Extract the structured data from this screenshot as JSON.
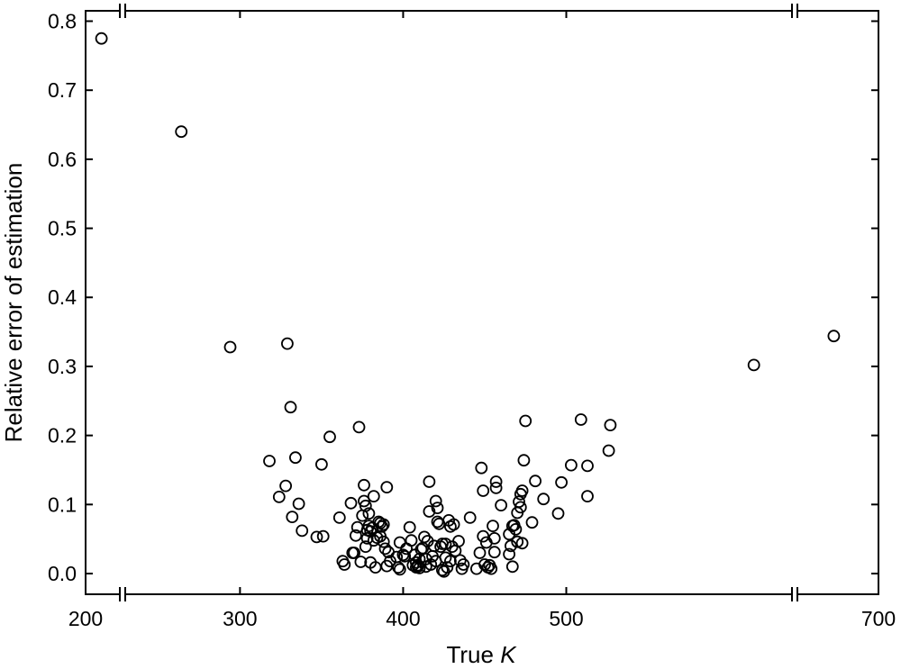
{
  "chart_data": {
    "type": "scatter",
    "title": "",
    "xlabel_prefix": "True ",
    "xlabel_var": "K",
    "ylabel": "Relative error of estimation",
    "ylim": [
      -0.03,
      0.815
    ],
    "y_ticks": [
      "0.0",
      "0.1",
      "0.2",
      "0.3",
      "0.4",
      "0.5",
      "0.6",
      "0.7",
      "0.8"
    ],
    "x_axis_broken": true,
    "x_ticks": [
      "200",
      "300",
      "400",
      "500",
      "700"
    ],
    "grid": false,
    "legend": "none",
    "marker": "open-circle",
    "color": "#000000",
    "points": [
      [
        212,
        0.775
      ],
      [
        264,
        0.64
      ],
      [
        294,
        0.328
      ],
      [
        318,
        0.163
      ],
      [
        324,
        0.111
      ],
      [
        328,
        0.127
      ],
      [
        329,
        0.333
      ],
      [
        331,
        0.241
      ],
      [
        332,
        0.082
      ],
      [
        334,
        0.168
      ],
      [
        336,
        0.101
      ],
      [
        338,
        0.062
      ],
      [
        347,
        0.053
      ],
      [
        350,
        0.158
      ],
      [
        351,
        0.054
      ],
      [
        355,
        0.198
      ],
      [
        361,
        0.081
      ],
      [
        363,
        0.018
      ],
      [
        364,
        0.013
      ],
      [
        368,
        0.102
      ],
      [
        369,
        0.03
      ],
      [
        370,
        0.03
      ],
      [
        371,
        0.055
      ],
      [
        372,
        0.067
      ],
      [
        373,
        0.212
      ],
      [
        374,
        0.017
      ],
      [
        375,
        0.084
      ],
      [
        376,
        0.105
      ],
      [
        376,
        0.128
      ],
      [
        377,
        0.039
      ],
      [
        377,
        0.098
      ],
      [
        378,
        0.051
      ],
      [
        378,
        0.063
      ],
      [
        379,
        0.087
      ],
      [
        379,
        0.069
      ],
      [
        380,
        0.061
      ],
      [
        380,
        0.016
      ],
      [
        381,
        0.066
      ],
      [
        382,
        0.048
      ],
      [
        382,
        0.112
      ],
      [
        383,
        0.009
      ],
      [
        384,
        0.052
      ],
      [
        385,
        0.075
      ],
      [
        386,
        0.073
      ],
      [
        386,
        0.054
      ],
      [
        387,
        0.068
      ],
      [
        388,
        0.046
      ],
      [
        388,
        0.071
      ],
      [
        389,
        0.036
      ],
      [
        390,
        0.125
      ],
      [
        390,
        0.011
      ],
      [
        391,
        0.031
      ],
      [
        392,
        0.018
      ],
      [
        396,
        0.024
      ],
      [
        397,
        0.009
      ],
      [
        398,
        0.045
      ],
      [
        398,
        0.006
      ],
      [
        400,
        0.027
      ],
      [
        401,
        0.025
      ],
      [
        402,
        0.036
      ],
      [
        404,
        0.067
      ],
      [
        405,
        0.048
      ],
      [
        406,
        0.012
      ],
      [
        407,
        0.027
      ],
      [
        408,
        0.016
      ],
      [
        408,
        0.009
      ],
      [
        409,
        0.012
      ],
      [
        409,
        0.01
      ],
      [
        410,
        0.021
      ],
      [
        410,
        0.008
      ],
      [
        411,
        0.035
      ],
      [
        412,
        0.037
      ],
      [
        413,
        0.053
      ],
      [
        414,
        0.021
      ],
      [
        414,
        0.01
      ],
      [
        415,
        0.047
      ],
      [
        416,
        0.09
      ],
      [
        416,
        0.133
      ],
      [
        417,
        0.013
      ],
      [
        418,
        0.025
      ],
      [
        419,
        0.04
      ],
      [
        420,
        0.105
      ],
      [
        420,
        0.018
      ],
      [
        421,
        0.075
      ],
      [
        421,
        0.095
      ],
      [
        422,
        0.072
      ],
      [
        423,
        0.039
      ],
      [
        424,
        0.043
      ],
      [
        424,
        0.005
      ],
      [
        425,
        0.003
      ],
      [
        426,
        0.043
      ],
      [
        426,
        0.023
      ],
      [
        427,
        0.009
      ],
      [
        428,
        0.077
      ],
      [
        429,
        0.068
      ],
      [
        429,
        0.018
      ],
      [
        430,
        0.039
      ],
      [
        431,
        0.071
      ],
      [
        432,
        0.033
      ],
      [
        434,
        0.047
      ],
      [
        435,
        0.019
      ],
      [
        436,
        0.007
      ],
      [
        437,
        0.013
      ],
      [
        441,
        0.081
      ],
      [
        445,
        0.007
      ],
      [
        447,
        0.03
      ],
      [
        448,
        0.153
      ],
      [
        449,
        0.054
      ],
      [
        449,
        0.12
      ],
      [
        450,
        0.013
      ],
      [
        451,
        0.045
      ],
      [
        452,
        0.009
      ],
      [
        453,
        0.012
      ],
      [
        454,
        0.007
      ],
      [
        455,
        0.069
      ],
      [
        456,
        0.031
      ],
      [
        456,
        0.051
      ],
      [
        457,
        0.133
      ],
      [
        457,
        0.124
      ],
      [
        460,
        0.099
      ],
      [
        465,
        0.028
      ],
      [
        465,
        0.057
      ],
      [
        466,
        0.04
      ],
      [
        467,
        0.01
      ],
      [
        467,
        0.069
      ],
      [
        468,
        0.07
      ],
      [
        469,
        0.064
      ],
      [
        470,
        0.046
      ],
      [
        470,
        0.088
      ],
      [
        471,
        0.104
      ],
      [
        472,
        0.115
      ],
      [
        472,
        0.096
      ],
      [
        473,
        0.12
      ],
      [
        473,
        0.044
      ],
      [
        474,
        0.164
      ],
      [
        475,
        0.221
      ],
      [
        479,
        0.074
      ],
      [
        481,
        0.134
      ],
      [
        486,
        0.108
      ],
      [
        495,
        0.087
      ],
      [
        497,
        0.132
      ],
      [
        503,
        0.157
      ],
      [
        509,
        0.223
      ],
      [
        513,
        0.112
      ],
      [
        513,
        0.156
      ],
      [
        526,
        0.178
      ],
      [
        527,
        0.215
      ],
      [
        615,
        0.302
      ],
      [
        668,
        0.344
      ]
    ]
  }
}
